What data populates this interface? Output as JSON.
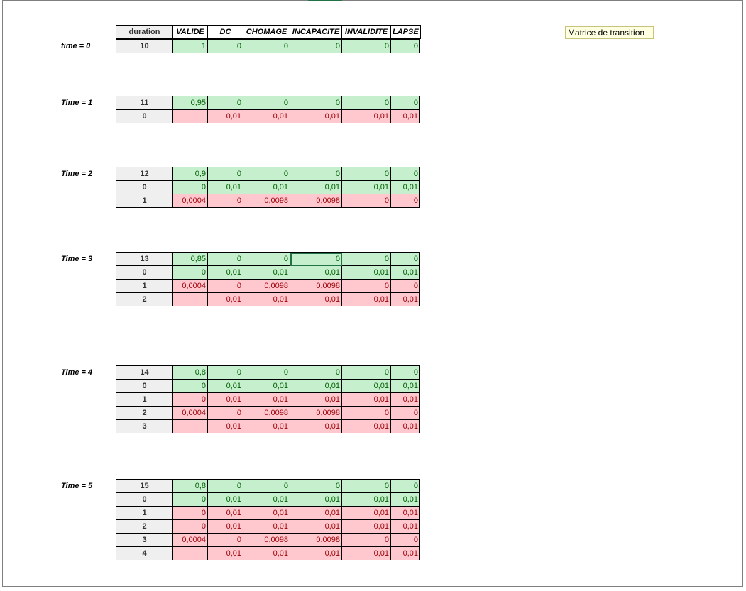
{
  "header": {
    "duration": "duration",
    "cols": [
      "VALIDE",
      "DC",
      "CHOMAGE",
      "INCAPACITE",
      "INVALIDITE",
      "LAPSE"
    ]
  },
  "note": "Matrice de transition",
  "blocks": [
    {
      "label": "time = 0",
      "rows": [
        {
          "d": "10",
          "v": [
            "1",
            "0",
            "0",
            "0",
            "0",
            "0"
          ],
          "c": [
            "g",
            "g",
            "g",
            "g",
            "g",
            "g"
          ]
        }
      ]
    },
    {
      "label": "Time = 1",
      "rows": [
        {
          "d": "11",
          "v": [
            "0,95",
            "0",
            "0",
            "0",
            "0",
            "0"
          ],
          "c": [
            "g",
            "g",
            "g",
            "g",
            "g",
            "g"
          ]
        },
        {
          "d": "0",
          "v": [
            "",
            "0,01",
            "0,01",
            "0,01",
            "0,01",
            "0,01"
          ],
          "c": [
            "e",
            "r",
            "r",
            "r",
            "r",
            "r"
          ]
        }
      ]
    },
    {
      "label": "Time = 2",
      "rows": [
        {
          "d": "12",
          "v": [
            "0,9",
            "0",
            "0",
            "0",
            "0",
            "0"
          ],
          "c": [
            "g",
            "g",
            "g",
            "g",
            "g",
            "g"
          ]
        },
        {
          "d": "0",
          "v": [
            "0",
            "0,01",
            "0,01",
            "0,01",
            "0,01",
            "0,01"
          ],
          "c": [
            "g",
            "g",
            "g",
            "g",
            "g",
            "g"
          ]
        },
        {
          "d": "1",
          "v": [
            "0,0004",
            "0",
            "0,0098",
            "0,0098",
            "0",
            "0"
          ],
          "c": [
            "r",
            "r",
            "r",
            "r",
            "r",
            "r"
          ]
        }
      ]
    },
    {
      "label": "Time = 3",
      "rows": [
        {
          "d": "13",
          "v": [
            "0,85",
            "0",
            "0",
            "0",
            "0",
            "0"
          ],
          "c": [
            "g",
            "g",
            "g",
            "g",
            "g",
            "g"
          ]
        },
        {
          "d": "0",
          "v": [
            "0",
            "0,01",
            "0,01",
            "0,01",
            "0,01",
            "0,01"
          ],
          "c": [
            "g",
            "g",
            "g",
            "g",
            "g",
            "g"
          ]
        },
        {
          "d": "1",
          "v": [
            "0,0004",
            "0",
            "0,0098",
            "0,0098",
            "0",
            "0"
          ],
          "c": [
            "r",
            "r",
            "r",
            "r",
            "r",
            "r"
          ]
        },
        {
          "d": "2",
          "v": [
            "",
            "0,01",
            "0,01",
            "0,01",
            "0,01",
            "0,01"
          ],
          "c": [
            "e",
            "r",
            "r",
            "r",
            "r",
            "r"
          ]
        }
      ]
    },
    {
      "label": "Time = 4",
      "rows": [
        {
          "d": "14",
          "v": [
            "0,8",
            "0",
            "0",
            "0",
            "0",
            "0"
          ],
          "c": [
            "g",
            "g",
            "g",
            "g",
            "g",
            "g"
          ]
        },
        {
          "d": "0",
          "v": [
            "0",
            "0,01",
            "0,01",
            "0,01",
            "0,01",
            "0,01"
          ],
          "c": [
            "g",
            "g",
            "g",
            "g",
            "g",
            "g"
          ]
        },
        {
          "d": "1",
          "v": [
            "0",
            "0,01",
            "0,01",
            "0,01",
            "0,01",
            "0,01"
          ],
          "c": [
            "r",
            "r",
            "r",
            "r",
            "r",
            "r"
          ]
        },
        {
          "d": "2",
          "v": [
            "0,0004",
            "0",
            "0,0098",
            "0,0098",
            "0",
            "0"
          ],
          "c": [
            "r",
            "r",
            "r",
            "r",
            "r",
            "r"
          ]
        },
        {
          "d": "3",
          "v": [
            "",
            "0,01",
            "0,01",
            "0,01",
            "0,01",
            "0,01"
          ],
          "c": [
            "e",
            "r",
            "r",
            "r",
            "r",
            "r"
          ]
        }
      ]
    },
    {
      "label": "Time = 5",
      "rows": [
        {
          "d": "15",
          "v": [
            "0,8",
            "0",
            "0",
            "0",
            "0",
            "0"
          ],
          "c": [
            "g",
            "g",
            "g",
            "g",
            "g",
            "g"
          ]
        },
        {
          "d": "0",
          "v": [
            "0",
            "0,01",
            "0,01",
            "0,01",
            "0,01",
            "0,01"
          ],
          "c": [
            "g",
            "g",
            "g",
            "g",
            "g",
            "g"
          ]
        },
        {
          "d": "1",
          "v": [
            "0",
            "0,01",
            "0,01",
            "0,01",
            "0,01",
            "0,01"
          ],
          "c": [
            "r",
            "r",
            "r",
            "r",
            "r",
            "r"
          ]
        },
        {
          "d": "2",
          "v": [
            "0",
            "0,01",
            "0,01",
            "0,01",
            "0,01",
            "0,01"
          ],
          "c": [
            "r",
            "r",
            "r",
            "r",
            "r",
            "r"
          ]
        },
        {
          "d": "3",
          "v": [
            "0,0004",
            "0",
            "0,0098",
            "0,0098",
            "0",
            "0"
          ],
          "c": [
            "r",
            "r",
            "r",
            "r",
            "r",
            "r"
          ]
        },
        {
          "d": "4",
          "v": [
            "",
            "0,01",
            "0,01",
            "0,01",
            "0,01",
            "0,01"
          ],
          "c": [
            "e",
            "r",
            "r",
            "r",
            "r",
            "r"
          ]
        }
      ]
    }
  ]
}
